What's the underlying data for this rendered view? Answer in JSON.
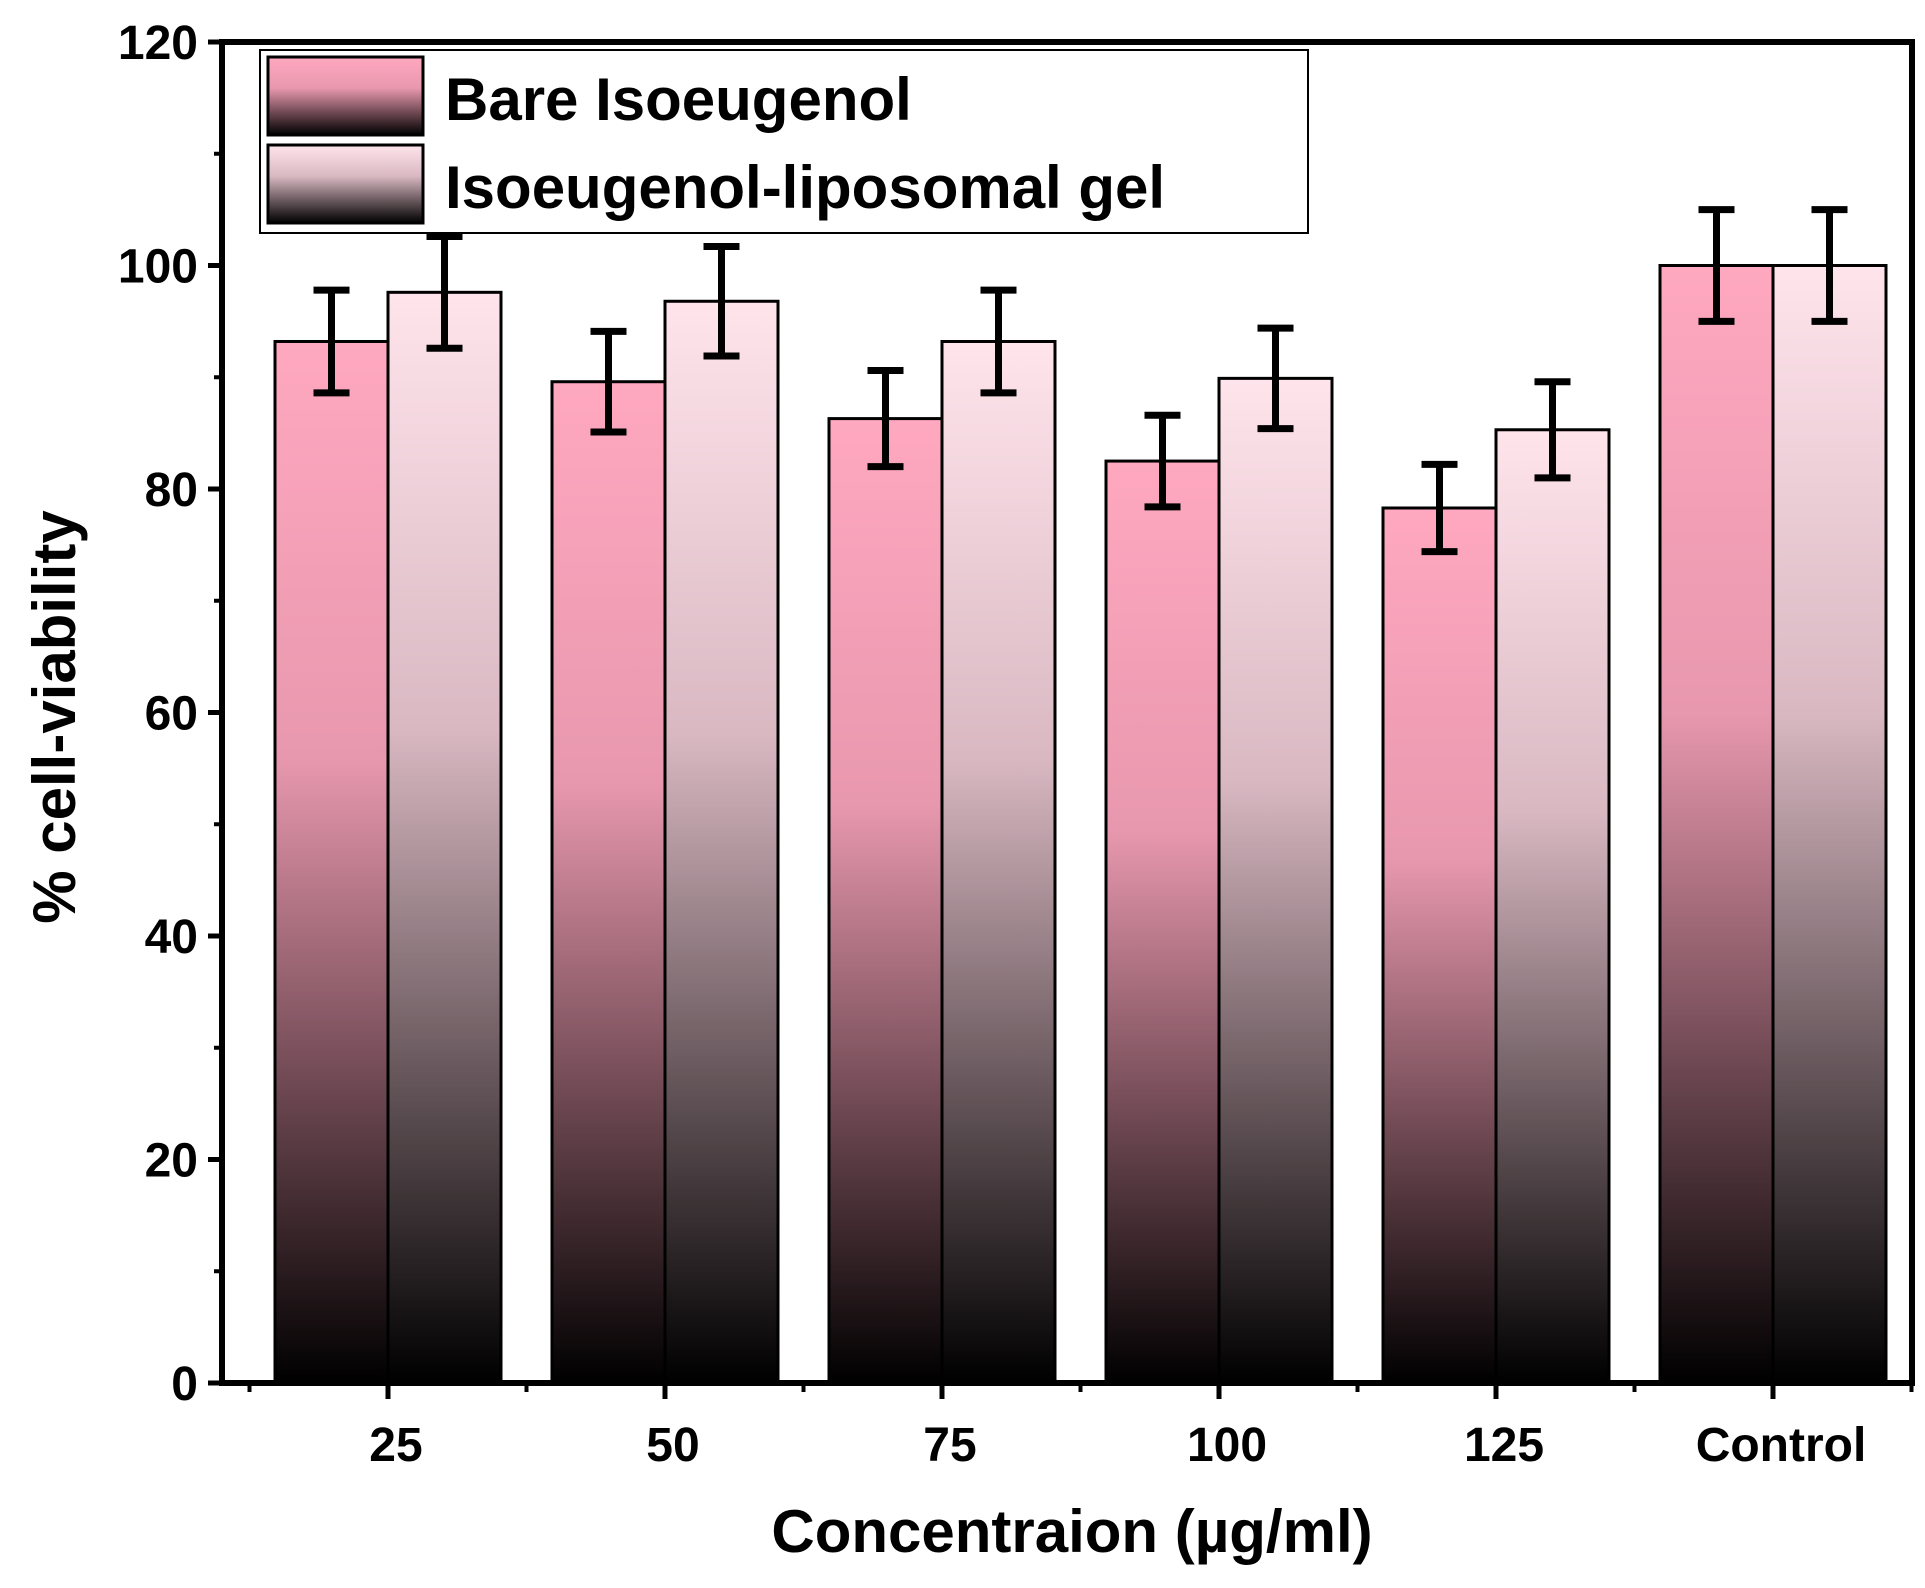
{
  "chart_data": {
    "type": "bar",
    "xlabel": "Concentraion (µg/ml)",
    "ylabel": "% cell-viability",
    "categories": [
      "25",
      "50",
      "75",
      "100",
      "125",
      "Control"
    ],
    "ylim": [
      0,
      120
    ],
    "yticks": [
      "0",
      "20",
      "40",
      "60",
      "80",
      "100",
      "120"
    ],
    "grid": false,
    "legend_position": "top-left",
    "series": [
      {
        "name": "Bare Isoeugenol",
        "values": [
          93.2,
          89.6,
          86.3,
          82.5,
          78.3,
          100
        ],
        "errors": [
          4.6,
          4.5,
          4.3,
          4.1,
          3.9,
          5.0
        ],
        "color_top": "#ffa8c0",
        "color_bottom": "#000000"
      },
      {
        "name": "Isoeugenol-liposomal gel",
        "values": [
          97.6,
          96.8,
          93.2,
          89.9,
          85.3,
          100
        ],
        "errors": [
          5.0,
          4.9,
          4.6,
          4.5,
          4.3,
          5.0
        ],
        "color_top": "#ffe4ec",
        "color_bottom": "#000000"
      }
    ]
  }
}
